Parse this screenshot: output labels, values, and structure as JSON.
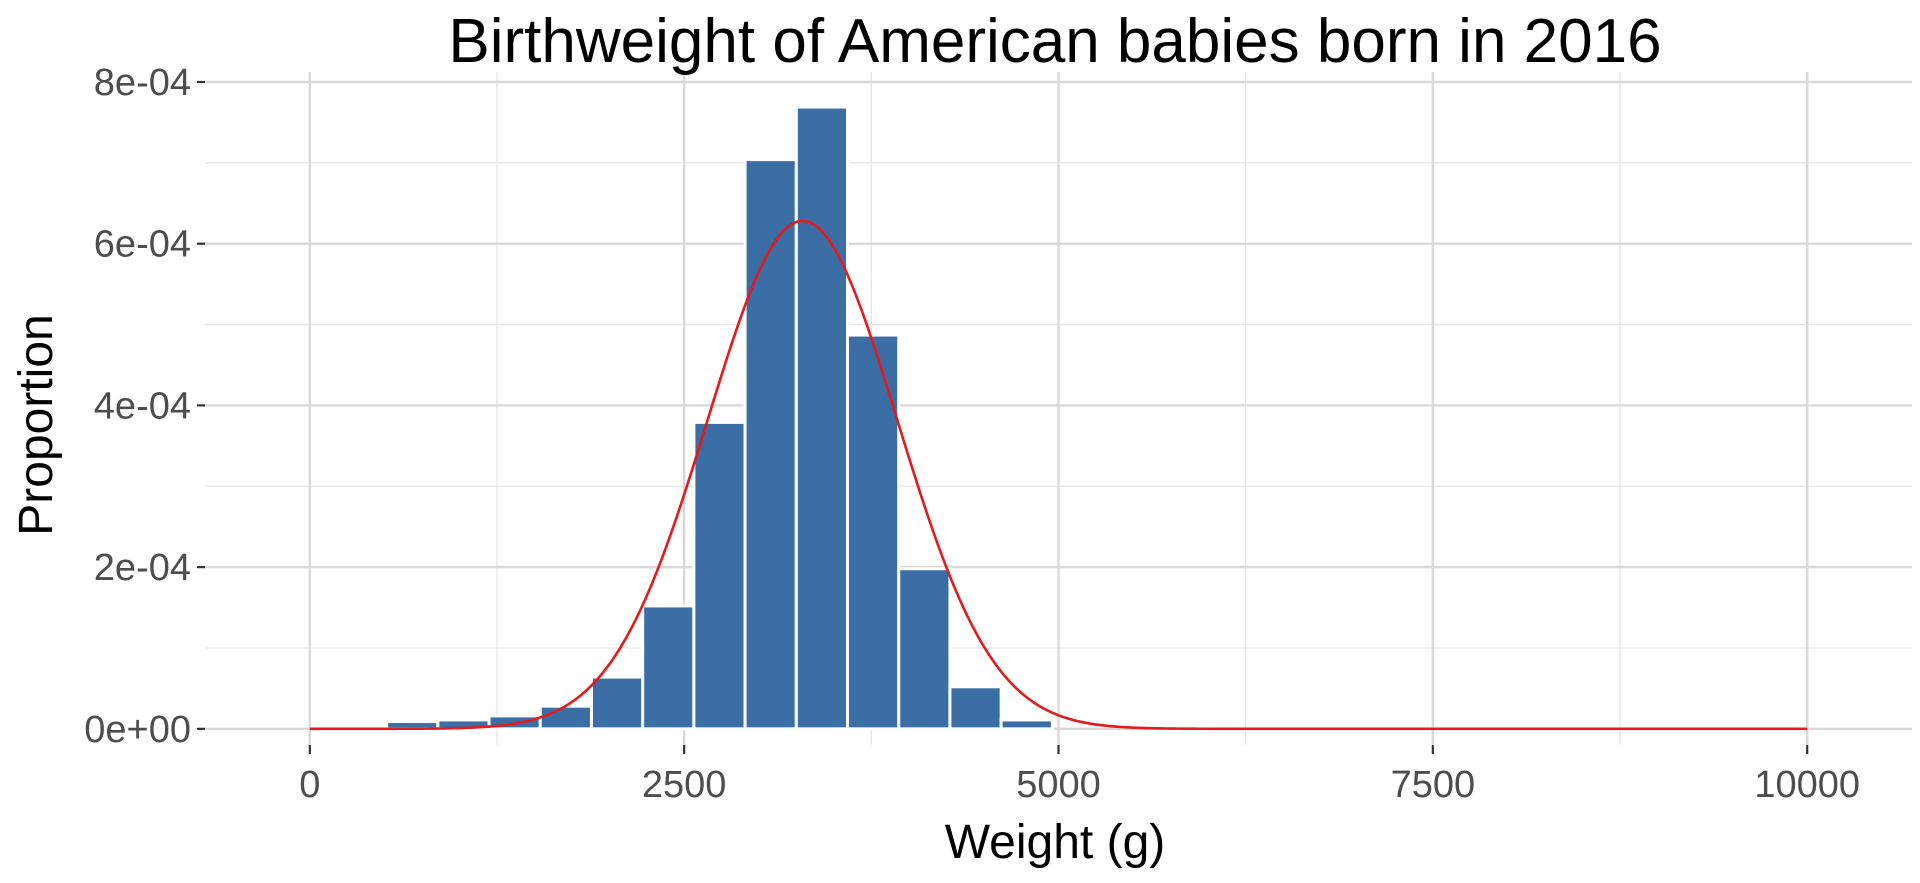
{
  "chart_data": {
    "type": "bar",
    "title": "Birthweight of American babies born in 2016",
    "xlabel": "Weight (g)",
    "ylabel": "Proportion",
    "xlim": [
      -700,
      10700
    ],
    "ylim": [
      -2e-05,
      0.0008
    ],
    "x_ticks": [
      0,
      2500,
      5000,
      7500,
      10000
    ],
    "x_tick_labels": [
      "0",
      "2500",
      "5000",
      "7500",
      "10000"
    ],
    "y_ticks": [
      0,
      0.0002,
      0.0004,
      0.0006,
      0.0008
    ],
    "y_tick_labels": [
      "0e+00",
      "2e-04",
      "4e-04",
      "6e-04",
      "8e-04"
    ],
    "bin_width": 342,
    "bins": [
      {
        "x0": 171,
        "x1": 513,
        "value": 3e-06
      },
      {
        "x0": 513,
        "x1": 855,
        "value": 9e-06
      },
      {
        "x0": 855,
        "x1": 1197,
        "value": 1.1e-05
      },
      {
        "x0": 1197,
        "x1": 1539,
        "value": 1.6e-05
      },
      {
        "x0": 1539,
        "x1": 1881,
        "value": 2.8e-05
      },
      {
        "x0": 1881,
        "x1": 2223,
        "value": 6.4e-05
      },
      {
        "x0": 2223,
        "x1": 2565,
        "value": 0.000152
      },
      {
        "x0": 2565,
        "x1": 2907,
        "value": 0.000379
      },
      {
        "x0": 2907,
        "x1": 3249,
        "value": 0.000704
      },
      {
        "x0": 3249,
        "x1": 3591,
        "value": 0.000769
      },
      {
        "x0": 3591,
        "x1": 3933,
        "value": 0.000487
      },
      {
        "x0": 3933,
        "x1": 4275,
        "value": 0.000198
      },
      {
        "x0": 4275,
        "x1": 4617,
        "value": 5.2e-05
      },
      {
        "x0": 4617,
        "x1": 4959,
        "value": 1.1e-05
      }
    ],
    "normal_curve": {
      "name": "Normal density",
      "mean": 3290,
      "sd": 635,
      "x_range": [
        0,
        10000
      ]
    },
    "colors": {
      "bar": "#3a6ea5",
      "curve": "#e41a1c"
    },
    "grid": true,
    "legend": "none"
  }
}
